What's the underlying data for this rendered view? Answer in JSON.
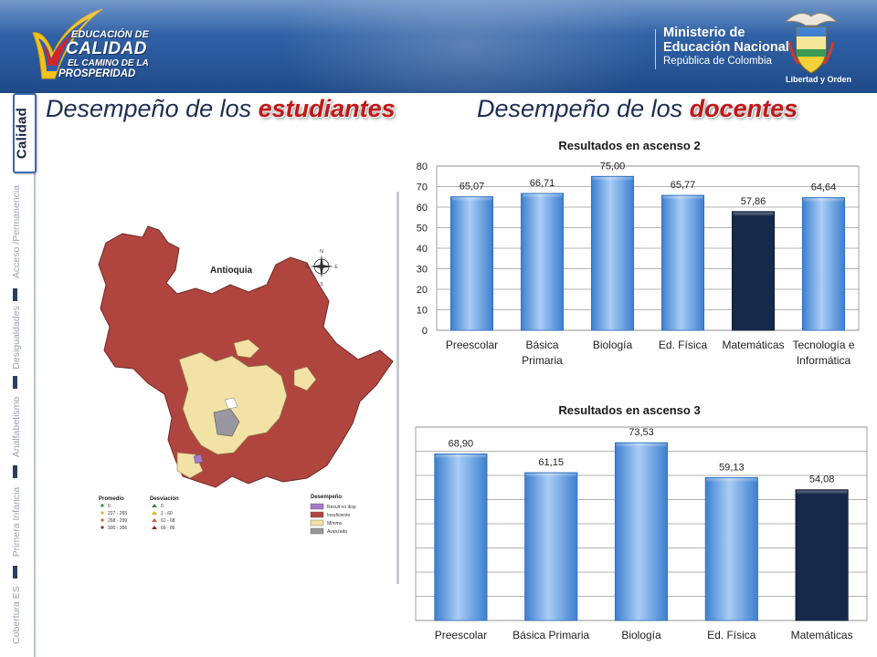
{
  "banner": {
    "logo_line1": "EDUCACIÓN DE",
    "logo_line2": "CALIDAD",
    "logo_line3": "EL CAMINO DE LA",
    "logo_line4": "PROSPERIDAD",
    "ministry_line1": "Ministerio de",
    "ministry_line2": "Educación Nacional",
    "ministry_line3": "República de Colombia",
    "motto": "Libertad y Orden"
  },
  "nav": {
    "active": "Calidad",
    "items": [
      "Acceso /Permanencia",
      "Desigualdades",
      "Analfabetismo",
      "Primera Infancia",
      "Cobertura ES"
    ]
  },
  "headings": {
    "students_prefix": "Desempeño de los ",
    "students_highlight": "estudiantes",
    "teachers_prefix": "Desempeño de los ",
    "teachers_highlight": "docentes"
  },
  "map": {
    "title": "Antioquia",
    "legend_promedio_title": "Promedio",
    "legend_desviacion_title": "Desviación",
    "legend_desempeno_title": "Desempeño",
    "promedio": [
      "0",
      "227 - 265",
      "268 - 299",
      "300 - 356"
    ],
    "desviacion": [
      "0",
      "1 - 60",
      "61 - 68",
      "69 - 86"
    ],
    "desempeno": [
      "Result no disp",
      "Insuficiente",
      "Mínimo",
      "Avanzado"
    ],
    "colors": {
      "insuficiente": "#b0453f",
      "minimo": "#f3e2a6",
      "avanzado": "#9a97a0",
      "no_disp": "#a779c9"
    }
  },
  "chart_data": [
    {
      "type": "bar",
      "title": "Resultados en ascenso 2",
      "categories": [
        "Preescolar",
        "Básica Primaria",
        "Biología",
        "Ed. Física",
        "Matemáticas",
        "Tecnología e Informática"
      ],
      "category_lines": [
        [
          "Preescolar"
        ],
        [
          "Básica",
          "Primaria"
        ],
        [
          "Biología"
        ],
        [
          "Ed. Física"
        ],
        [
          "Matemáticas"
        ],
        [
          "Tecnología e",
          "Informática"
        ]
      ],
      "values": [
        65.07,
        66.71,
        75.0,
        65.77,
        57.86,
        64.64
      ],
      "value_labels": [
        "65,07",
        "66,71",
        "75,00",
        "65,77",
        "57,86",
        "64,64"
      ],
      "highlight": [
        false,
        false,
        false,
        false,
        true,
        false
      ],
      "ylim": [
        0,
        80
      ],
      "yticks": [
        0,
        10,
        20,
        30,
        40,
        50,
        60,
        70,
        80
      ],
      "show_y_labels": true,
      "grid": true
    },
    {
      "type": "bar",
      "title": "Resultados en ascenso 3",
      "categories": [
        "Preescolar",
        "Básica Primaria",
        "Biología",
        "Ed. Física",
        "Matemáticas"
      ],
      "category_lines": [
        [
          "Preescolar"
        ],
        [
          "Básica Primaria"
        ],
        [
          "Biología"
        ],
        [
          "Ed. Física"
        ],
        [
          "Matemáticas"
        ]
      ],
      "values": [
        68.9,
        61.15,
        73.53,
        59.13,
        54.08
      ],
      "value_labels": [
        "68,90",
        "61,15",
        "73,53",
        "59,13",
        "54,08"
      ],
      "highlight": [
        false,
        false,
        false,
        false,
        true
      ],
      "ylim": [
        0,
        80
      ],
      "yticks": [
        0,
        10,
        20,
        30,
        40,
        50,
        60,
        70,
        80
      ],
      "show_y_labels": false,
      "grid": true
    }
  ],
  "colors": {
    "bar_light_top": "#a9cdf5",
    "bar_light_bottom": "#3d7fd0",
    "bar_dark": "#16294a",
    "heading_text": "#1c2f52",
    "heading_highlight": "#c01818",
    "banner": "#2b5b9e"
  }
}
